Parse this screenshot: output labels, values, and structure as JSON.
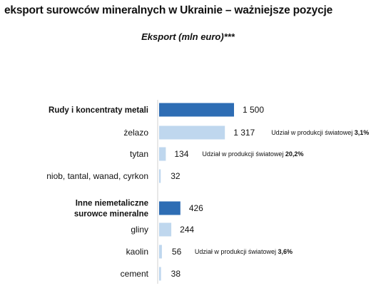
{
  "header": {
    "title": "eksport surowców mineralnych w Ukrainie – ważniejsze pozycje",
    "subtitle": "Eksport (mln euro)***"
  },
  "colors": {
    "group_bar": "#2e6db4",
    "item_bar": "#bfd7ee"
  },
  "chart_data": {
    "type": "bar",
    "orientation": "horizontal",
    "title": "Eksport (mln euro)***",
    "xlim": [
      0,
      1600
    ],
    "grid": false,
    "legend": "none",
    "categories": [
      "Rudy i koncentraty metali",
      "żelazo",
      "tytan",
      "niob, tantal, wanad, cyrkon",
      "Inne niemetaliczne surowce mineralne",
      "gliny",
      "kaolin",
      "cement"
    ],
    "rows": [
      {
        "label": [
          "Rudy i koncentraty metali"
        ],
        "value": 1500,
        "value_label": "1 500",
        "group": true,
        "note": null
      },
      {
        "label": [
          "żelazo"
        ],
        "value": 1317,
        "value_label": "1 317",
        "group": false,
        "note": {
          "prefix": "Udział w produkcji światowej ",
          "value": "3,1%"
        }
      },
      {
        "label": [
          "tytan"
        ],
        "value": 134,
        "value_label": "134",
        "group": false,
        "note": {
          "prefix": "Udział w produkcji światowej ",
          "value": "20,2%"
        }
      },
      {
        "label": [
          "niob, tantal, wanad, cyrkon"
        ],
        "value": 32,
        "value_label": "32",
        "group": false,
        "note": null
      },
      {
        "label": [
          "Inne niemetaliczne",
          "surowce mineralne"
        ],
        "value": 426,
        "value_label": "426",
        "group": true,
        "note": null
      },
      {
        "label": [
          "gliny"
        ],
        "value": 244,
        "value_label": "244",
        "group": false,
        "note": null
      },
      {
        "label": [
          "kaolin"
        ],
        "value": 56,
        "value_label": "56",
        "group": false,
        "note": {
          "prefix": "Udział w produkcji światowej ",
          "value": "3,6%"
        }
      },
      {
        "label": [
          "cement"
        ],
        "value": 38,
        "value_label": "38",
        "group": false,
        "note": null
      }
    ]
  }
}
